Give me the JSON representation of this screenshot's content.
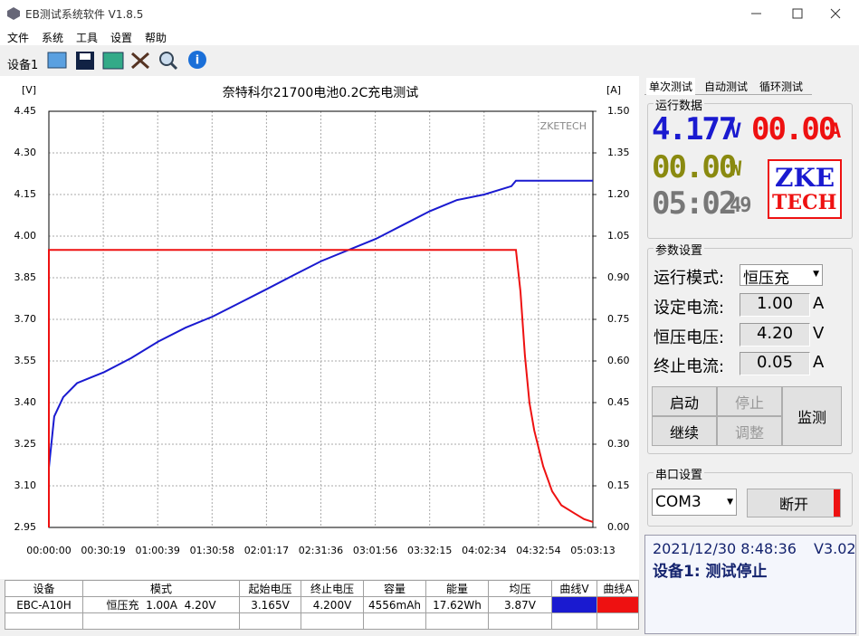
{
  "window": {
    "title": "EB测试系统软件 V1.8.5"
  },
  "menu": [
    "文件",
    "系统",
    "工具",
    "设置",
    "帮助"
  ],
  "toolbar": {
    "device_tab": "设备1"
  },
  "chart_data": {
    "type": "line",
    "title": "奈特科尔21700电池0.2C充电测试",
    "y_unit": "[V]",
    "y2_unit": "[A]",
    "watermark": "ZKETECH",
    "xlim": [
      0,
      18193
    ],
    "xticks": [
      {
        "value": 0,
        "label": "00:00:00"
      },
      {
        "value": 1819,
        "label": "00:30:19"
      },
      {
        "value": 3639,
        "label": "01:00:39"
      },
      {
        "value": 5458,
        "label": "01:30:58"
      },
      {
        "value": 7277,
        "label": "02:01:17"
      },
      {
        "value": 9096,
        "label": "02:31:36"
      },
      {
        "value": 10916,
        "label": "03:01:56"
      },
      {
        "value": 12735,
        "label": "03:32:15"
      },
      {
        "value": 14554,
        "label": "04:02:34"
      },
      {
        "value": 16374,
        "label": "04:32:54"
      },
      {
        "value": 18193,
        "label": "05:03:13"
      }
    ],
    "ylim": [
      2.95,
      4.45
    ],
    "yticks": [
      {
        "value": 2.95,
        "label": "2.95"
      },
      {
        "value": 3.1,
        "label": "3.10"
      },
      {
        "value": 3.25,
        "label": "3.25"
      },
      {
        "value": 3.4,
        "label": "3.40"
      },
      {
        "value": 3.55,
        "label": "3.55"
      },
      {
        "value": 3.7,
        "label": "3.70"
      },
      {
        "value": 3.85,
        "label": "3.85"
      },
      {
        "value": 4.0,
        "label": "4.00"
      },
      {
        "value": 4.15,
        "label": "4.15"
      },
      {
        "value": 4.3,
        "label": "4.30"
      },
      {
        "value": 4.45,
        "label": "4.45"
      }
    ],
    "y2lim": [
      0,
      1.5
    ],
    "y2ticks": [
      {
        "value": 0,
        "label": "0.00"
      },
      {
        "value": 0.15,
        "label": "0.15"
      },
      {
        "value": 0.3,
        "label": "0.30"
      },
      {
        "value": 0.45,
        "label": "0.45"
      },
      {
        "value": 0.6,
        "label": "0.60"
      },
      {
        "value": 0.75,
        "label": "0.75"
      },
      {
        "value": 0.9,
        "label": "0.90"
      },
      {
        "value": 1.05,
        "label": "1.05"
      },
      {
        "value": 1.2,
        "label": "1.20"
      },
      {
        "value": 1.35,
        "label": "1.35"
      },
      {
        "value": 1.5,
        "label": "1.50"
      }
    ],
    "grid": true,
    "series": [
      {
        "color": "#1a1ad0",
        "axis": "y",
        "x": [
          0,
          180,
          480,
          940,
          1390,
          1850,
          2750,
          3660,
          4570,
          5480,
          6390,
          7300,
          8200,
          9110,
          10020,
          10930,
          11840,
          12740,
          13650,
          14560,
          15470,
          15620,
          18193
        ],
        "values": [
          3.165,
          3.35,
          3.42,
          3.47,
          3.49,
          3.51,
          3.56,
          3.62,
          3.67,
          3.71,
          3.76,
          3.81,
          3.86,
          3.91,
          3.95,
          3.99,
          4.04,
          4.09,
          4.13,
          4.15,
          4.18,
          4.2,
          4.2
        ]
      },
      {
        "color": "#ee1111",
        "axis": "y2",
        "x": [
          0,
          0,
          15620,
          15770,
          15920,
          16070,
          16230,
          16530,
          16830,
          17140,
          17590,
          17900,
          18193
        ],
        "values": [
          0,
          1.0,
          1.0,
          0.85,
          0.62,
          0.45,
          0.35,
          0.22,
          0.13,
          0.08,
          0.05,
          0.03,
          0.02
        ]
      }
    ]
  },
  "tabs": [
    "单次测试",
    "自动测试",
    "循环测试"
  ],
  "run_data": {
    "group": "运行数据",
    "voltage": "4.177",
    "voltage_unit": "V",
    "current": "00.00",
    "current_unit": "A",
    "power": "00.00",
    "power_unit": "W",
    "time": "05:02",
    "time_seconds": "49",
    "logo_top": "ZKE",
    "logo_bottom": "TECH"
  },
  "params": {
    "group": "参数设置",
    "rows": [
      {
        "label": "运行模式:",
        "value": "恒压充"
      },
      {
        "label": "设定电流:",
        "value": "1.00",
        "unit": "A"
      },
      {
        "label": "恒压电压:",
        "value": "4.20",
        "unit": "V"
      },
      {
        "label": "终止电流:",
        "value": "0.05",
        "unit": "A"
      }
    ]
  },
  "buttons": {
    "start": "启动",
    "stop": "停止",
    "resume": "继续",
    "adjust": "调整",
    "monitor": "监测"
  },
  "serial": {
    "group": "串口设置",
    "port": "COM3",
    "button": "断开"
  },
  "status": {
    "datetime": "2021/12/30 8:48:36",
    "version": "V3.02",
    "message": "设备1: 测试停止"
  },
  "table": {
    "headers": [
      "设备",
      "模式",
      "起始电压",
      "终止电压",
      "容量",
      "能量",
      "均压",
      "曲线V",
      "曲线A"
    ],
    "rows": [
      [
        "EBC-A10H",
        "恒压充  1.00A  4.20V",
        "3.165V",
        "4.200V",
        "4556mAh",
        "17.62Wh",
        "3.87V"
      ]
    ]
  }
}
